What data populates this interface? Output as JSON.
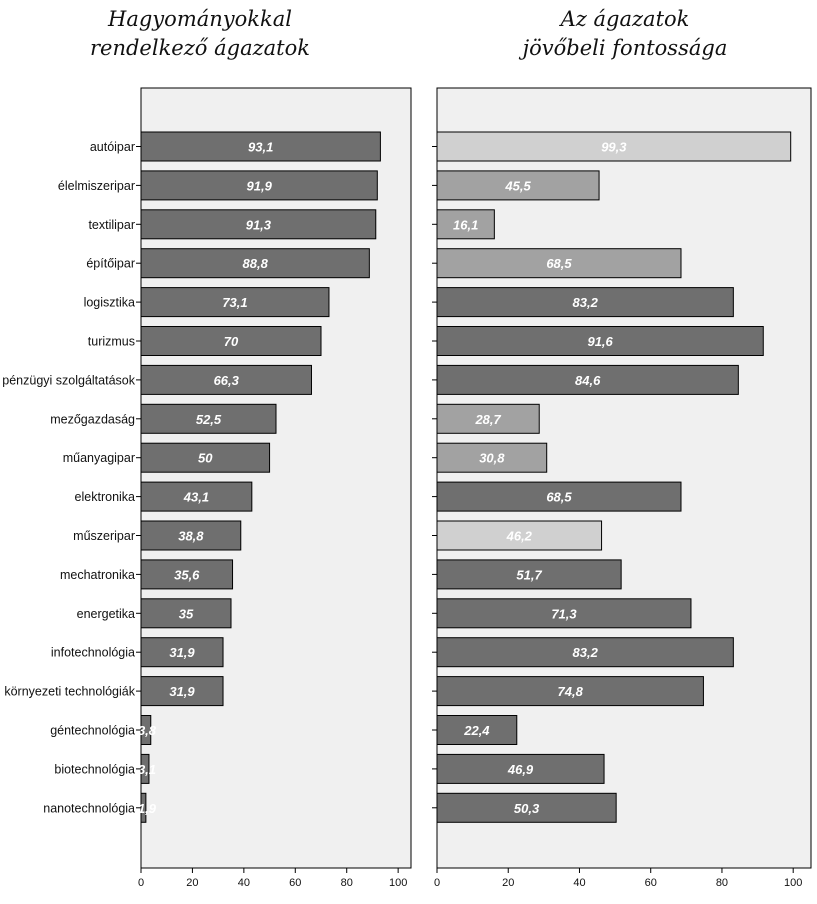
{
  "chart_data": [
    {
      "type": "bar",
      "orientation": "horizontal",
      "title": "Hagyományokkal rendelkező ágazatok",
      "title_lines": [
        "Hagyományokkal",
        "rendelkező ágazatok"
      ],
      "categories": [
        "autóipar",
        "élelmiszeripar",
        "textilipar",
        "építőipar",
        "logisztika",
        "turizmus",
        "pénzügyi szolgáltatások",
        "mezőgazdaság",
        "műanyagipar",
        "elektronika",
        "műszeripar",
        "mechatronika",
        "energetika",
        "infotechnológia",
        "környezeti technológiák",
        "géntechnológia",
        "biotechnológia",
        "nanotechnológia"
      ],
      "values": [
        93.1,
        91.9,
        91.3,
        88.8,
        73.1,
        70,
        66.3,
        52.5,
        50,
        43.1,
        38.8,
        35.6,
        35,
        31.9,
        31.9,
        3.8,
        3.1,
        1.9
      ],
      "value_labels": [
        "93,1",
        "91,9",
        "91,3",
        "88,8",
        "73,1",
        "70",
        "66,3",
        "52,5",
        "50",
        "43,1",
        "38,8",
        "35,6",
        "35",
        "31,9",
        "31,9",
        "3,8",
        "3,1",
        "1,9"
      ],
      "xlim": [
        0,
        105
      ],
      "xticks": [
        0,
        20,
        40,
        60,
        80,
        100
      ],
      "colors": [
        "#6f6f6f",
        "#6f6f6f",
        "#6f6f6f",
        "#6f6f6f",
        "#6f6f6f",
        "#6f6f6f",
        "#6f6f6f",
        "#6f6f6f",
        "#6f6f6f",
        "#6f6f6f",
        "#6f6f6f",
        "#6f6f6f",
        "#6f6f6f",
        "#6f6f6f",
        "#6f6f6f",
        "#6f6f6f",
        "#6f6f6f",
        "#6f6f6f"
      ],
      "grid": false
    },
    {
      "type": "bar",
      "orientation": "horizontal",
      "title": "Az ágazatok jövőbeli fontossága",
      "title_lines": [
        "Az ágazatok",
        "jövőbeli fontossága"
      ],
      "categories": [
        "autóipar",
        "élelmiszeripar",
        "textilipar",
        "építőipar",
        "logisztika",
        "turizmus",
        "pénzügyi szolgáltatások",
        "mezőgazdaság",
        "műanyagipar",
        "elektronika",
        "műszeripar",
        "mechatronika",
        "energetika",
        "infotechnológia",
        "környezeti technológiák",
        "géntechnológia",
        "biotechnológia",
        "nanotechnológia"
      ],
      "values": [
        99.3,
        45.5,
        16.1,
        68.5,
        83.2,
        91.6,
        84.6,
        28.7,
        30.8,
        68.5,
        46.2,
        51.7,
        71.3,
        83.2,
        74.8,
        22.4,
        46.9,
        50.3
      ],
      "value_labels": [
        "99,3",
        "45,5",
        "16,1",
        "68,5",
        "83,2",
        "91,6",
        "84,6",
        "28,7",
        "30,8",
        "68,5",
        "46,2",
        "51,7",
        "71,3",
        "83,2",
        "74,8",
        "22,4",
        "46,9",
        "50,3"
      ],
      "xlim": [
        0,
        105
      ],
      "xticks": [
        0,
        20,
        40,
        60,
        80,
        100
      ],
      "colors": [
        "#d0d0d0",
        "#a2a2a2",
        "#a2a2a2",
        "#a2a2a2",
        "#6f6f6f",
        "#6f6f6f",
        "#6f6f6f",
        "#a2a2a2",
        "#a2a2a2",
        "#6f6f6f",
        "#d0d0d0",
        "#6f6f6f",
        "#6f6f6f",
        "#6f6f6f",
        "#6f6f6f",
        "#6f6f6f",
        "#6f6f6f",
        "#6f6f6f"
      ],
      "grid": false
    }
  ]
}
